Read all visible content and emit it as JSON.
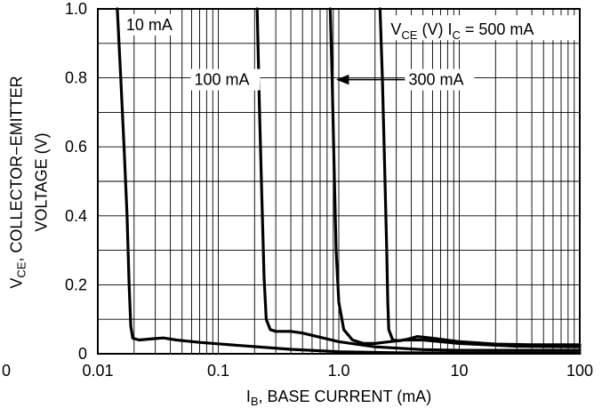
{
  "chart_data": {
    "type": "line",
    "xscale": "log",
    "xlim": [
      0.01,
      100
    ],
    "ylim": [
      0,
      1.0
    ],
    "x_ticks": [
      {
        "value": 0.01,
        "label": "0.01"
      },
      {
        "value": 0.1,
        "label": "0.1"
      },
      {
        "value": 1.0,
        "label": "1.0"
      },
      {
        "value": 10,
        "label": "10"
      },
      {
        "value": 100,
        "label": "100"
      }
    ],
    "x_origin_label": "0",
    "y_ticks": [
      {
        "value": 0,
        "label": "0"
      },
      {
        "value": 0.2,
        "label": "0.2"
      },
      {
        "value": 0.4,
        "label": "0.4"
      },
      {
        "value": 0.6,
        "label": "0.6"
      },
      {
        "value": 0.8,
        "label": "0.8"
      },
      {
        "value": 1.0,
        "label": "1.0"
      }
    ],
    "grid": true,
    "xlabel": {
      "symbol": "I",
      "sub": "B",
      "text": ", BASE CURRENT (mA)"
    },
    "ylabel": {
      "symbol": "V",
      "sub": "CE",
      "line1": ", COLLECTOR−EMITTER",
      "line2": "VOLTAGE (V)"
    },
    "series": [
      {
        "name": "10 mA",
        "x": [
          0.0145,
          0.0155,
          0.0165,
          0.0175,
          0.0182,
          0.0188,
          0.0195,
          0.022,
          0.03,
          0.035,
          0.045,
          0.07,
          0.15,
          0.4,
          1.0,
          3.0,
          10,
          30,
          100
        ],
        "y": [
          1.0,
          0.8,
          0.6,
          0.4,
          0.2,
          0.08,
          0.045,
          0.04,
          0.044,
          0.046,
          0.04,
          0.033,
          0.024,
          0.013,
          0.006,
          0.003,
          0.002,
          0.002,
          0.002
        ]
      },
      {
        "name": "100 mA",
        "x": [
          0.21,
          0.22,
          0.23,
          0.24,
          0.25,
          0.27,
          0.3,
          0.4,
          0.5,
          0.7,
          1.0,
          2.0,
          5.0,
          10,
          30,
          100
        ],
        "y": [
          1.0,
          0.7,
          0.45,
          0.22,
          0.1,
          0.07,
          0.065,
          0.065,
          0.06,
          0.048,
          0.035,
          0.02,
          0.012,
          0.01,
          0.01,
          0.01
        ]
      },
      {
        "name": "300 mA",
        "x": [
          0.85,
          0.88,
          0.92,
          0.95,
          1.0,
          1.1,
          1.3,
          1.6,
          2.0,
          2.5,
          3.5,
          5.0,
          10,
          30,
          100
        ],
        "y": [
          1.0,
          0.8,
          0.5,
          0.3,
          0.15,
          0.07,
          0.04,
          0.03,
          0.03,
          0.034,
          0.04,
          0.04,
          0.03,
          0.022,
          0.02
        ]
      },
      {
        "name": "500 mA",
        "x": [
          2.2,
          2.3,
          2.4,
          2.5,
          2.55,
          2.6,
          2.8,
          3.2,
          3.8,
          4.5,
          6.0,
          10,
          20,
          40,
          100
        ],
        "y": [
          1.0,
          0.8,
          0.55,
          0.3,
          0.15,
          0.07,
          0.04,
          0.038,
          0.043,
          0.05,
          0.045,
          0.035,
          0.028,
          0.026,
          0.026
        ]
      }
    ],
    "annotations": [
      {
        "text": "10 mA",
        "series": "10 mA"
      },
      {
        "text": "100 mA",
        "series": "100 mA"
      },
      {
        "text": "300 mA",
        "series": "300 mA",
        "arrow": true
      },
      {
        "prefix": "V",
        "prefix_sub": "CE",
        "middle": " (V) I",
        "middle_sub": "C",
        "text": " = 500 mA",
        "series": "500 mA"
      }
    ]
  }
}
